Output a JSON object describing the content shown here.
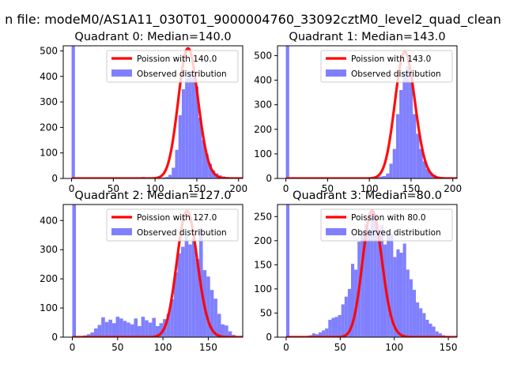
{
  "chart_data": {
    "type": "histogram-grid",
    "suptitle": "n file: modeM0/AS1A11_030T01_9000004760_33092cztM0_level2_quad_clean",
    "legend": {
      "line_label_prefix": "Poission with ",
      "bar_label": "Observed distribution",
      "placement": "upper-right"
    },
    "colors": {
      "bar": "#8080ff",
      "line": "#ff0000",
      "axis": "#000000"
    },
    "panels": [
      {
        "title": "Quadrant 0: Median=140.0",
        "median": 140.0,
        "median_label": "140.0",
        "xlim": [
          -10,
          205
        ],
        "ylim": [
          0,
          520
        ],
        "xticks": [
          0,
          50,
          100,
          150,
          200
        ],
        "yticks": [
          0,
          100,
          200,
          300,
          400,
          500
        ],
        "bin_width": 4,
        "bins": [
          [
            0,
            520
          ],
          [
            84,
            6
          ],
          [
            104,
            2
          ],
          [
            108,
            4
          ],
          [
            112,
            6
          ],
          [
            116,
            14
          ],
          [
            120,
            42
          ],
          [
            124,
            112
          ],
          [
            128,
            248
          ],
          [
            132,
            350
          ],
          [
            136,
            395
          ],
          [
            140,
            418
          ],
          [
            144,
            398
          ],
          [
            148,
            360
          ],
          [
            152,
            238
          ],
          [
            156,
            150
          ],
          [
            160,
            96
          ],
          [
            164,
            58
          ],
          [
            168,
            32
          ],
          [
            172,
            20
          ],
          [
            176,
            12
          ],
          [
            180,
            8
          ],
          [
            184,
            6
          ],
          [
            188,
            4
          ],
          [
            192,
            2
          ]
        ],
        "poisson_peak": 510
      },
      {
        "title": "Quadrant 1: Median=143.0",
        "median": 143.0,
        "median_label": "143.0",
        "xlim": [
          -10,
          205
        ],
        "ylim": [
          0,
          540
        ],
        "xticks": [
          0,
          50,
          100,
          150,
          200
        ],
        "yticks": [
          0,
          100,
          200,
          300,
          400,
          500
        ],
        "bin_width": 4,
        "bins": [
          [
            0,
            540
          ],
          [
            100,
            2
          ],
          [
            104,
            4
          ],
          [
            108,
            6
          ],
          [
            112,
            8
          ],
          [
            116,
            10
          ],
          [
            120,
            20
          ],
          [
            124,
            60
          ],
          [
            128,
            120
          ],
          [
            132,
            262
          ],
          [
            136,
            360
          ],
          [
            140,
            432
          ],
          [
            144,
            455
          ],
          [
            148,
            390
          ],
          [
            152,
            262
          ],
          [
            156,
            182
          ],
          [
            160,
            120
          ],
          [
            164,
            70
          ],
          [
            168,
            38
          ],
          [
            172,
            22
          ],
          [
            176,
            14
          ],
          [
            180,
            8
          ],
          [
            184,
            4
          ],
          [
            188,
            2
          ]
        ],
        "poisson_peak": 515
      },
      {
        "title": "Quadrant 2: Median=127.0",
        "median": 127.0,
        "median_label": "127.0",
        "xlim": [
          -10,
          188
        ],
        "ylim": [
          0,
          455
        ],
        "xticks": [
          0,
          50,
          100,
          150
        ],
        "yticks": [
          0,
          100,
          200,
          300,
          400
        ],
        "bin_width": 4,
        "bins": [
          [
            0,
            455
          ],
          [
            4,
            2
          ],
          [
            8,
            2
          ],
          [
            12,
            6
          ],
          [
            16,
            10
          ],
          [
            20,
            16
          ],
          [
            24,
            30
          ],
          [
            28,
            42
          ],
          [
            32,
            68
          ],
          [
            36,
            52
          ],
          [
            40,
            60
          ],
          [
            44,
            48
          ],
          [
            48,
            70
          ],
          [
            52,
            64
          ],
          [
            56,
            56
          ],
          [
            60,
            50
          ],
          [
            64,
            44
          ],
          [
            68,
            64
          ],
          [
            72,
            38
          ],
          [
            76,
            70
          ],
          [
            80,
            58
          ],
          [
            84,
            50
          ],
          [
            88,
            66
          ],
          [
            92,
            38
          ],
          [
            96,
            48
          ],
          [
            100,
            62
          ],
          [
            104,
            80
          ],
          [
            108,
            130
          ],
          [
            112,
            222
          ],
          [
            116,
            288
          ],
          [
            120,
            310
          ],
          [
            124,
            352
          ],
          [
            128,
            318
          ],
          [
            132,
            340
          ],
          [
            136,
            268
          ],
          [
            140,
            372
          ],
          [
            144,
            230
          ],
          [
            148,
            208
          ],
          [
            152,
            162
          ],
          [
            156,
            132
          ],
          [
            160,
            80
          ],
          [
            164,
            44
          ],
          [
            168,
            40
          ],
          [
            172,
            20
          ],
          [
            176,
            8
          ]
        ],
        "poisson_peak": 432
      },
      {
        "title": "Quadrant 3: Median=80.0",
        "median": 80.0,
        "median_label": "80.0",
        "xlim": [
          -8,
          158
        ],
        "ylim": [
          0,
          275
        ],
        "xticks": [
          0,
          50,
          100,
          150
        ],
        "yticks": [
          0,
          50,
          100,
          150,
          200,
          250
        ],
        "bin_width": 3,
        "bins": [
          [
            0,
            275
          ],
          [
            12,
            2
          ],
          [
            18,
            2
          ],
          [
            21,
            4
          ],
          [
            24,
            8
          ],
          [
            27,
            6
          ],
          [
            30,
            10
          ],
          [
            33,
            14
          ],
          [
            36,
            18
          ],
          [
            39,
            36
          ],
          [
            42,
            40
          ],
          [
            45,
            42
          ],
          [
            48,
            46
          ],
          [
            51,
            68
          ],
          [
            54,
            84
          ],
          [
            57,
            100
          ],
          [
            60,
            152
          ],
          [
            63,
            140
          ],
          [
            66,
            198
          ],
          [
            69,
            216
          ],
          [
            72,
            234
          ],
          [
            75,
            225
          ],
          [
            78,
            262
          ],
          [
            81,
            248
          ],
          [
            84,
            222
          ],
          [
            87,
            232
          ],
          [
            90,
            192
          ],
          [
            93,
            212
          ],
          [
            96,
            214
          ],
          [
            99,
            166
          ],
          [
            102,
            182
          ],
          [
            105,
            175
          ],
          [
            108,
            194
          ],
          [
            111,
            140
          ],
          [
            114,
            120
          ],
          [
            117,
            98
          ],
          [
            120,
            72
          ],
          [
            123,
            60
          ],
          [
            126,
            50
          ],
          [
            129,
            36
          ],
          [
            132,
            28
          ],
          [
            135,
            22
          ],
          [
            138,
            12
          ],
          [
            141,
            8
          ],
          [
            144,
            4
          ],
          [
            147,
            2
          ]
        ],
        "poisson_peak": 262
      }
    ]
  }
}
